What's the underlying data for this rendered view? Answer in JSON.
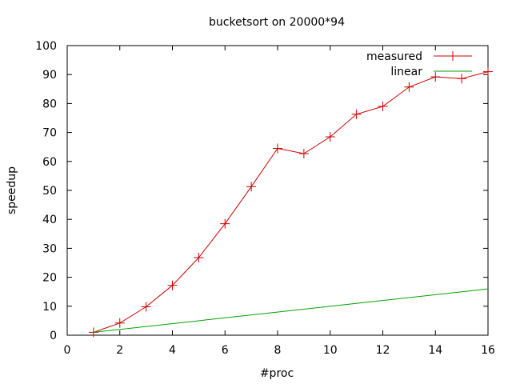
{
  "chart_data": {
    "type": "line",
    "title": "bucketsort on 20000*94",
    "xlabel": "#proc",
    "ylabel": "speedup",
    "xlim": [
      0,
      16
    ],
    "ylim": [
      0,
      100
    ],
    "xticks": [
      0,
      2,
      4,
      6,
      8,
      10,
      12,
      14,
      16
    ],
    "yticks": [
      0,
      10,
      20,
      30,
      40,
      50,
      60,
      70,
      80,
      90,
      100
    ],
    "grid": false,
    "legend_position": "top-right",
    "series": [
      {
        "name": "measured",
        "color": "#cc0000",
        "marker": "plus",
        "x": [
          1,
          2,
          3,
          4,
          5,
          6,
          7,
          8,
          9,
          10,
          11,
          12,
          13,
          14,
          15,
          16
        ],
        "y": [
          1.0,
          4.2,
          9.8,
          17.2,
          26.8,
          38.5,
          51.3,
          64.5,
          62.7,
          68.5,
          76.3,
          79.0,
          85.7,
          89.2,
          88.6,
          91.0
        ]
      },
      {
        "name": "linear",
        "color": "#00a000",
        "marker": "none",
        "x": [
          1,
          16
        ],
        "y": [
          1,
          16
        ]
      }
    ]
  }
}
